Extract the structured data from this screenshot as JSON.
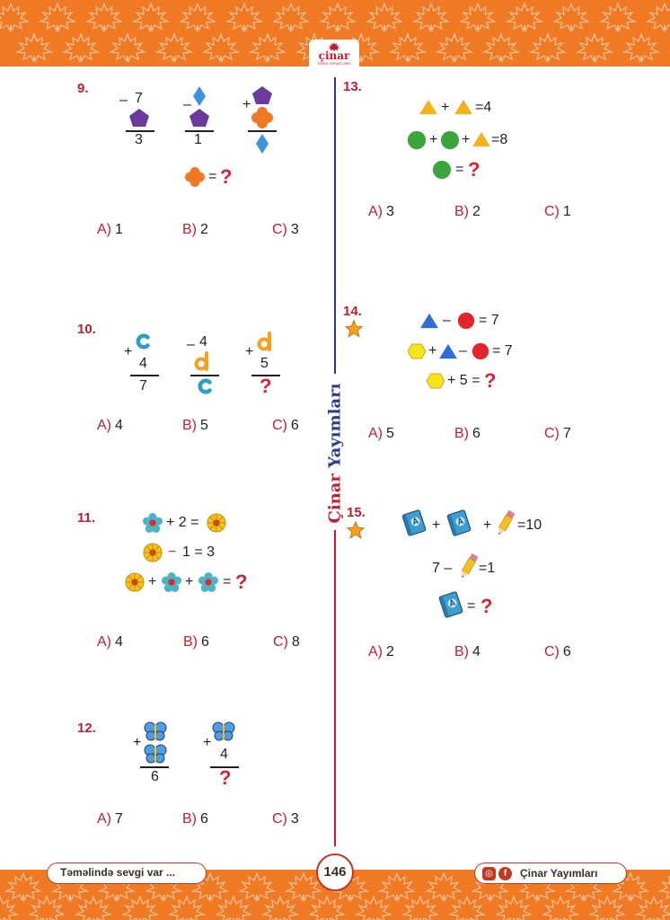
{
  "header": {
    "logo_name": "çinar",
    "logo_sub": "DƏRS VƏSAİTLƏRİ"
  },
  "spine_text": {
    "word1": "Çinar",
    "word2": "Yayımları"
  },
  "q9": {
    "num": "9.",
    "m1": {
      "op": "–",
      "top": "7",
      "res": "3"
    },
    "m2": {
      "op": "–",
      "res": "1"
    },
    "m3": {
      "op": "+"
    },
    "eq": {
      "eq": "=",
      "q": "?"
    },
    "options": [
      {
        "letter": "A)",
        "value": "1"
      },
      {
        "letter": "B)",
        "value": "2"
      },
      {
        "letter": "C)",
        "value": "3"
      }
    ]
  },
  "q10": {
    "num": "10.",
    "m1": {
      "op": "+",
      "mid": "4",
      "res": "7"
    },
    "m2": {
      "op": "–",
      "top": "4"
    },
    "m3": {
      "op": "+",
      "mid": "5",
      "q": "?"
    },
    "options": [
      {
        "letter": "A)",
        "value": "4"
      },
      {
        "letter": "B)",
        "value": "5"
      },
      {
        "letter": "C)",
        "value": "6"
      }
    ]
  },
  "q11": {
    "num": "11.",
    "l1": "+ 2 =",
    "l2a": "−",
    "l2b": "1 = 3",
    "plus": "+",
    "eq": "=",
    "q": "?",
    "options": [
      {
        "letter": "A)",
        "value": "4"
      },
      {
        "letter": "B)",
        "value": "6"
      },
      {
        "letter": "C)",
        "value": "8"
      }
    ]
  },
  "q12": {
    "num": "12.",
    "m1": {
      "op": "+",
      "res": "6"
    },
    "m2": {
      "op": "+",
      "mid": "4",
      "q": "?"
    },
    "options": [
      {
        "letter": "A)",
        "value": "7"
      },
      {
        "letter": "B)",
        "value": "6"
      },
      {
        "letter": "C)",
        "value": "3"
      }
    ]
  },
  "q13": {
    "num": "13.",
    "plus": "+",
    "l1_rhs": "=4",
    "l2_rhs": "=8",
    "eq": "=",
    "q": "?",
    "options": [
      {
        "letter": "A)",
        "value": "3"
      },
      {
        "letter": "B)",
        "value": "2"
      },
      {
        "letter": "C)",
        "value": "1"
      }
    ]
  },
  "q14": {
    "num": "14.",
    "minus": "–",
    "plus": "+",
    "rhs": "= 7",
    "l3": "+ 5 =",
    "q": "?",
    "options": [
      {
        "letter": "A)",
        "value": "5"
      },
      {
        "letter": "B)",
        "value": "6"
      },
      {
        "letter": "C)",
        "value": "7"
      }
    ]
  },
  "q15": {
    "num": "15.",
    "plus": "+",
    "l1_rhs": "=10",
    "l2_lhs": "7 –",
    "l2_rhs": "=1",
    "eq": "=",
    "q": "?",
    "options": [
      {
        "letter": "A)",
        "value": "2"
      },
      {
        "letter": "B)",
        "value": "4"
      },
      {
        "letter": "C)",
        "value": "6"
      }
    ]
  },
  "footer": {
    "slogan": "Təməlində sevgi var ...",
    "page": "146",
    "brand": "Çinar Yayımları"
  },
  "colors": {
    "band": "#f07a24",
    "red": "#c21d2e",
    "navy": "#2a3a8c",
    "purple": "#6a3a9c",
    "orange_flower": "#f07a24",
    "blue_diamond": "#3d93e0",
    "teal_flower": "#4bb5c8",
    "yellow_flower": "#f6c21a",
    "green_circle": "#3aa53a",
    "yellow_triangle": "#f6b21a",
    "yellow_hexagon": "#f8e21a",
    "red_circle": "#e3262b",
    "blue_triangle": "#2f6cd6"
  },
  "icons": [
    "maple-leaf-icon",
    "pentagon-icon",
    "diamond-icon",
    "clover-icon",
    "letter-c-icon",
    "letter-d-icon",
    "teal-flower-icon",
    "yellow-flower-icon",
    "butterfly-icon",
    "triangle-icon",
    "circle-icon",
    "hexagon-icon",
    "star-icon",
    "book-icon",
    "pencil-icon",
    "instagram-icon",
    "facebook-icon"
  ]
}
